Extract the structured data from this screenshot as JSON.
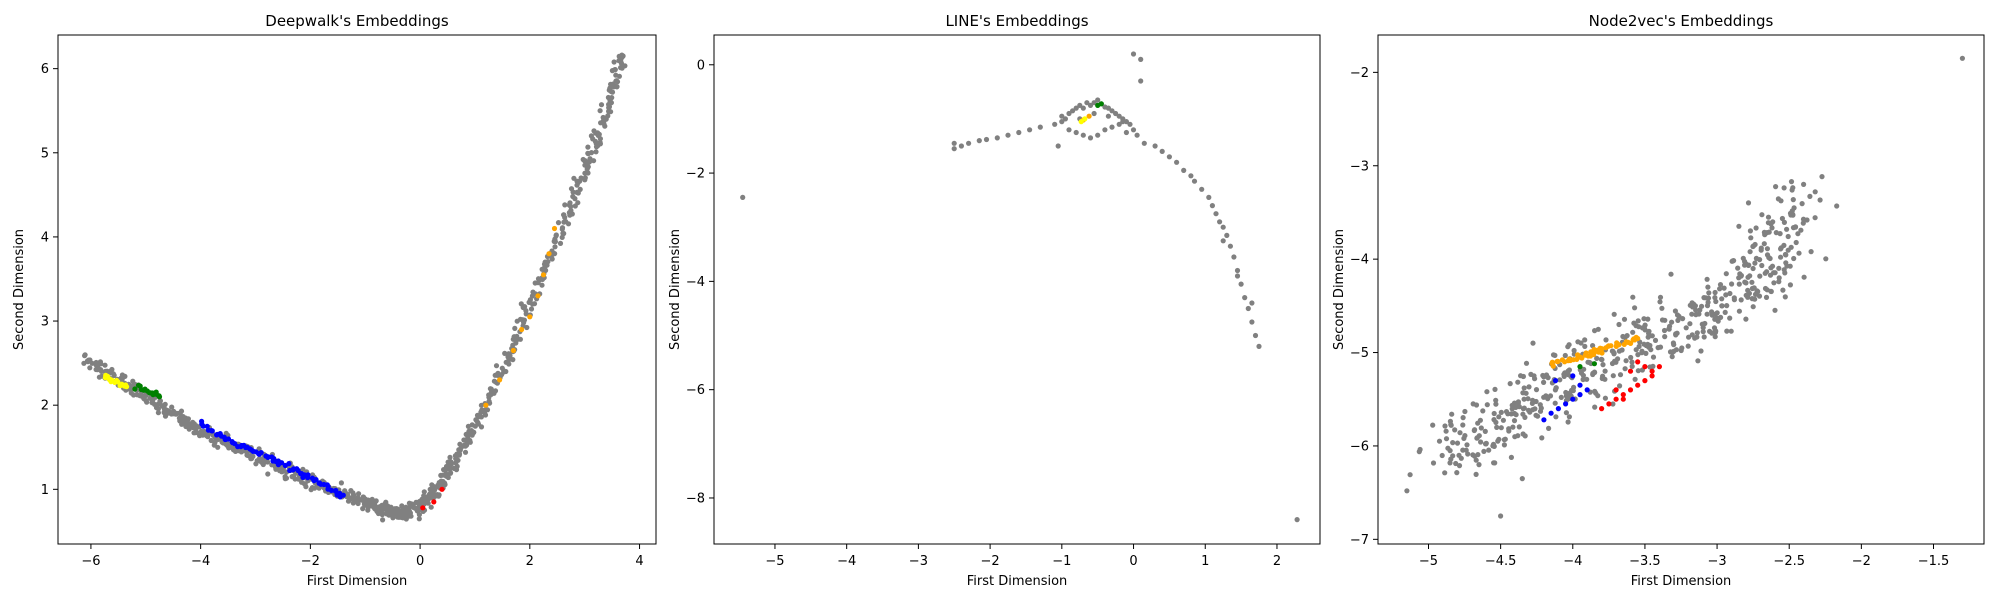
{
  "chart_data": [
    {
      "type": "scatter",
      "title": "Deepwalk's Embeddings",
      "xlabel": "First Dimension",
      "ylabel": "Second Dimension",
      "xlim": [
        -6.6,
        4.3
      ],
      "ylim": [
        0.35,
        6.4
      ],
      "xticks": [
        -6,
        -4,
        -2,
        0,
        2,
        4
      ],
      "yticks": [
        1,
        2,
        3,
        4,
        5,
        6
      ],
      "grid": false,
      "series": [
        {
          "color": "#808080",
          "kind": "polyline",
          "x": [
            -6.1,
            -5.5,
            -5.0,
            -4.5,
            -4.0,
            -3.5,
            -3.0,
            -2.5,
            -2.0,
            -1.5,
            -1.0,
            -0.6,
            -0.3,
            0.0,
            0.3,
            0.6,
            1.0,
            1.5,
            2.0,
            2.5,
            3.0,
            3.4,
            3.7
          ],
          "y": [
            2.55,
            2.3,
            2.1,
            1.9,
            1.7,
            1.55,
            1.4,
            1.25,
            1.1,
            0.97,
            0.83,
            0.74,
            0.72,
            0.8,
            1.0,
            1.3,
            1.75,
            2.4,
            3.2,
            4.0,
            4.8,
            5.5,
            6.15
          ]
        },
        {
          "color": "#0000ff",
          "kind": "polyline",
          "x": [
            -4.0,
            -3.7,
            -3.4,
            -3.1,
            -2.8,
            -2.5,
            -2.2,
            -1.9,
            -1.6,
            -1.4
          ],
          "y": [
            1.78,
            1.65,
            1.55,
            1.48,
            1.4,
            1.3,
            1.2,
            1.1,
            1.0,
            0.93
          ]
        },
        {
          "color": "#ffff00",
          "kind": "polyline",
          "x": [
            -5.75,
            -5.55,
            -5.35
          ],
          "y": [
            2.33,
            2.28,
            2.22
          ]
        },
        {
          "color": "#008000",
          "kind": "polyline",
          "x": [
            -5.2,
            -4.9,
            -4.75
          ],
          "y": [
            2.22,
            2.15,
            2.1
          ]
        },
        {
          "color": "#ffa500",
          "kind": "points",
          "x": [
            1.2,
            1.45,
            1.7,
            1.85,
            2.0,
            2.15,
            2.25,
            2.35,
            2.45
          ],
          "y": [
            2.0,
            2.3,
            2.65,
            2.9,
            3.05,
            3.3,
            3.55,
            3.8,
            4.1
          ]
        },
        {
          "color": "#ff0000",
          "kind": "points",
          "x": [
            0.05,
            0.25,
            0.4
          ],
          "y": [
            0.78,
            0.85,
            1.0
          ]
        }
      ]
    },
    {
      "type": "scatter",
      "title": "LINE's Embeddings",
      "xlabel": "First Dimension",
      "ylabel": "Second Dimension",
      "xlim": [
        -5.85,
        2.6
      ],
      "ylim": [
        -8.85,
        0.55
      ],
      "xticks": [
        -5,
        -4,
        -3,
        -2,
        -1,
        0,
        1,
        2
      ],
      "yticks": [
        -8,
        -6,
        -4,
        -2,
        0
      ],
      "grid": false,
      "series": [
        {
          "color": "#808080",
          "kind": "points",
          "x": [
            -5.45,
            -2.5,
            -2.5,
            -2.4,
            -2.3,
            -2.15,
            -2.05,
            -1.9,
            -1.75,
            -1.6,
            -1.45,
            -1.3,
            -1.1,
            -1.05,
            -1.0,
            -1.0,
            -0.95,
            -0.9,
            -0.85,
            -0.8,
            -0.75,
            -0.7,
            -0.65,
            -0.6,
            -0.55,
            -0.5,
            -0.45,
            -0.4,
            -0.35,
            -0.3,
            -0.25,
            -0.2,
            -0.15,
            -0.1,
            -0.05,
            0.0,
            -0.9,
            -0.8,
            -0.7,
            -0.6,
            -0.5,
            -0.4,
            -0.3,
            -0.2,
            -0.1,
            -0.75,
            -0.55,
            -0.35,
            -0.15,
            0.05,
            0.15,
            0.3,
            0.4,
            0.5,
            0.6,
            0.7,
            0.8,
            0.85,
            0.95,
            1.05,
            1.1,
            1.15,
            1.2,
            1.25,
            1.3,
            1.35,
            1.4,
            1.45,
            1.5,
            1.55,
            1.6,
            1.65,
            1.7,
            1.75,
            1.65,
            1.45,
            1.25,
            0.0,
            0.1,
            0.1,
            2.28
          ],
          "y": [
            -2.45,
            -1.45,
            -1.55,
            -1.5,
            -1.45,
            -1.4,
            -1.38,
            -1.35,
            -1.3,
            -1.25,
            -1.2,
            -1.15,
            -1.1,
            -1.5,
            -1.05,
            -0.95,
            -1.0,
            -0.9,
            -0.85,
            -0.8,
            -0.75,
            -0.8,
            -0.7,
            -0.75,
            -0.7,
            -0.65,
            -0.72,
            -0.78,
            -0.8,
            -0.85,
            -0.9,
            -0.95,
            -1.0,
            -1.05,
            -1.1,
            -1.2,
            -1.2,
            -1.25,
            -1.3,
            -1.35,
            -1.3,
            -1.2,
            -1.15,
            -1.1,
            -1.25,
            -1.0,
            -0.9,
            -0.95,
            -1.05,
            -1.3,
            -1.45,
            -1.5,
            -1.6,
            -1.7,
            -1.8,
            -1.95,
            -2.05,
            -2.15,
            -2.3,
            -2.45,
            -2.6,
            -2.75,
            -2.9,
            -3.0,
            -3.15,
            -3.35,
            -3.55,
            -3.8,
            -4.05,
            -4.3,
            -4.5,
            -4.75,
            -5.0,
            -5.2,
            -4.4,
            -3.9,
            -3.25,
            0.2,
            0.1,
            -0.3,
            -8.4
          ]
        },
        {
          "color": "#ffa500",
          "kind": "points",
          "x": [
            -0.7,
            -0.62
          ],
          "y": [
            -1.02,
            -0.95
          ]
        },
        {
          "color": "#ffff00",
          "kind": "points",
          "x": [
            -0.73,
            -0.68
          ],
          "y": [
            -1.05,
            -1.0
          ]
        },
        {
          "color": "#008000",
          "kind": "points",
          "x": [
            -0.5,
            -0.45
          ],
          "y": [
            -0.75,
            -0.72
          ]
        }
      ]
    },
    {
      "type": "scatter",
      "title": "Node2vec's Embeddings",
      "xlabel": "First Dimension",
      "ylabel": "Second Dimension",
      "xlim": [
        -5.35,
        -1.15
      ],
      "ylim": [
        -7.05,
        -1.6
      ],
      "xticks": [
        -5.0,
        -4.5,
        -4.0,
        -3.5,
        -3.0,
        -2.5,
        -2.0,
        -1.5
      ],
      "yticks": [
        -7,
        -6,
        -5,
        -4,
        -3,
        -2
      ],
      "grid": false,
      "series": [
        {
          "color": "#808080",
          "kind": "cloud",
          "x": [
            -4.9,
            -4.6,
            -4.3,
            -4.0,
            -3.7,
            -3.4,
            -3.1,
            -2.8,
            -2.6,
            -2.4
          ],
          "y": [
            -6.1,
            -5.8,
            -5.55,
            -5.3,
            -5.05,
            -4.85,
            -4.6,
            -4.3,
            -3.9,
            -3.3
          ]
        },
        {
          "color": "#808080",
          "kind": "points",
          "x": [
            -5.15,
            -4.5,
            -4.85,
            -4.65,
            -4.35,
            -2.4,
            -1.3,
            -2.75,
            -2.85,
            -3.15
          ],
          "y": [
            -6.48,
            -6.75,
            -6.05,
            -6.2,
            -6.35,
            -3.2,
            -1.85,
            -4.1,
            -4.2,
            -4.5
          ]
        },
        {
          "color": "#ffa500",
          "kind": "polyline",
          "x": [
            -4.15,
            -4.05,
            -3.95,
            -3.85,
            -3.75,
            -3.65,
            -3.55
          ],
          "y": [
            -5.12,
            -5.08,
            -5.05,
            -5.0,
            -4.95,
            -4.9,
            -4.85
          ]
        },
        {
          "color": "#0000ff",
          "kind": "points",
          "x": [
            -4.2,
            -4.15,
            -4.1,
            -4.05,
            -4.0,
            -3.95,
            -3.9,
            -4.12,
            -4.0,
            -3.95
          ],
          "y": [
            -5.72,
            -5.65,
            -5.6,
            -5.55,
            -5.5,
            -5.45,
            -5.4,
            -5.3,
            -5.25,
            -5.35
          ]
        },
        {
          "color": "#ff0000",
          "kind": "points",
          "x": [
            -3.8,
            -3.75,
            -3.7,
            -3.65,
            -3.6,
            -3.55,
            -3.5,
            -3.45,
            -3.6,
            -3.7,
            -3.5,
            -3.55,
            -3.45,
            -3.4,
            -3.65
          ],
          "y": [
            -5.6,
            -5.55,
            -5.5,
            -5.45,
            -5.4,
            -5.35,
            -5.3,
            -5.25,
            -5.2,
            -5.4,
            -5.15,
            -5.1,
            -5.2,
            -5.15,
            -5.5
          ]
        },
        {
          "color": "#008000",
          "kind": "points",
          "x": [
            -3.95,
            -3.85
          ],
          "y": [
            -5.15,
            -5.12
          ]
        }
      ]
    }
  ]
}
